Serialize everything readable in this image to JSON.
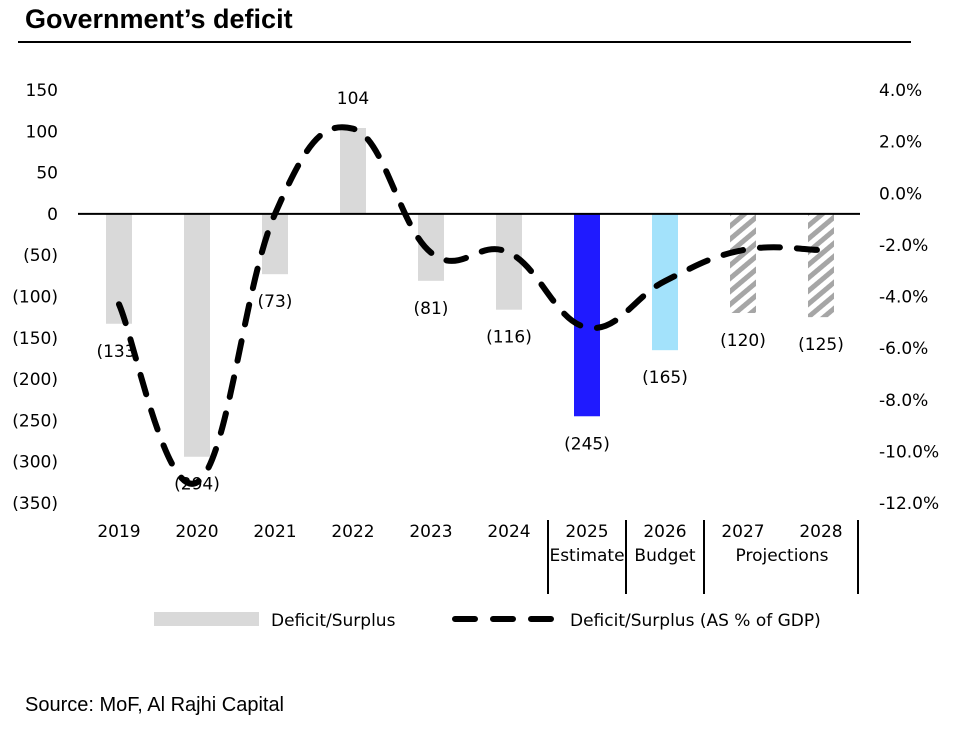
{
  "title": "Government’s deficit",
  "source": "Source: MoF, Al Rajhi Capital",
  "chart_data": {
    "type": "bar",
    "title": "Government’s deficit",
    "categories": [
      "2019",
      "2020",
      "2021",
      "2022",
      "2023",
      "2024",
      "2025",
      "2026",
      "2027",
      "2028"
    ],
    "category_groups": [
      {
        "label": "Estimate",
        "categories": [
          "2025"
        ]
      },
      {
        "label": "Budget",
        "categories": [
          "2026"
        ]
      },
      {
        "label": "Projections",
        "categories": [
          "2027",
          "2028"
        ]
      }
    ],
    "series": [
      {
        "name": "Deficit/Surplus",
        "type": "bar",
        "axis": "left",
        "values": [
          -133,
          -294,
          -73,
          104,
          -81,
          -116,
          -245,
          -165,
          -120,
          -125
        ],
        "labels": [
          "(133",
          "(294)",
          "(73)",
          "104",
          "(81)",
          "(116)",
          "(245)",
          "(165)",
          "(120)",
          "(125)"
        ],
        "colors": [
          "#d9d9d9",
          "#d9d9d9",
          "#d9d9d9",
          "#d9d9d9",
          "#d9d9d9",
          "#d9d9d9",
          "#1f1aff",
          "#a3e2fb",
          "hatched",
          "hatched"
        ]
      },
      {
        "name": "Deficit/Surplus (AS % of GDP)",
        "type": "line",
        "style": "dashed",
        "axis": "right",
        "values": [
          -4.3,
          -11.2,
          -0.8,
          2.5,
          -2.3,
          -2.3,
          -5.2,
          -3.4,
          -2.2,
          -2.2
        ]
      }
    ],
    "left_axis": {
      "ylim": [
        -350,
        150
      ],
      "ticks": [
        150,
        100,
        50,
        0,
        -50,
        -100,
        -150,
        -200,
        -250,
        -300,
        -350
      ],
      "tick_labels": [
        "150",
        "100",
        "50",
        "0",
        "(50)",
        "(100)",
        "(150)",
        "(200)",
        "(250)",
        "(300)",
        "(350)"
      ]
    },
    "right_axis": {
      "ylim": [
        -12,
        4
      ],
      "ticks": [
        4,
        2,
        0,
        -2,
        -4,
        -6,
        -8,
        -10,
        -12
      ],
      "tick_labels": [
        "4.0%",
        "2.0%",
        "0.0%",
        "-2.0%",
        "-4.0%",
        "-6.0%",
        "-8.0%",
        "-10.0%",
        "-12.0%"
      ]
    },
    "legend": {
      "placement": "bottom",
      "entries": [
        {
          "label": "Deficit/Surplus",
          "marker": "bar",
          "color": "#d9d9d9"
        },
        {
          "label": "Deficit/Surplus (AS % of GDP)",
          "marker": "dashed-line",
          "color": "#000000"
        }
      ]
    },
    "grid": false,
    "xlabel": "",
    "ylabel": ""
  }
}
